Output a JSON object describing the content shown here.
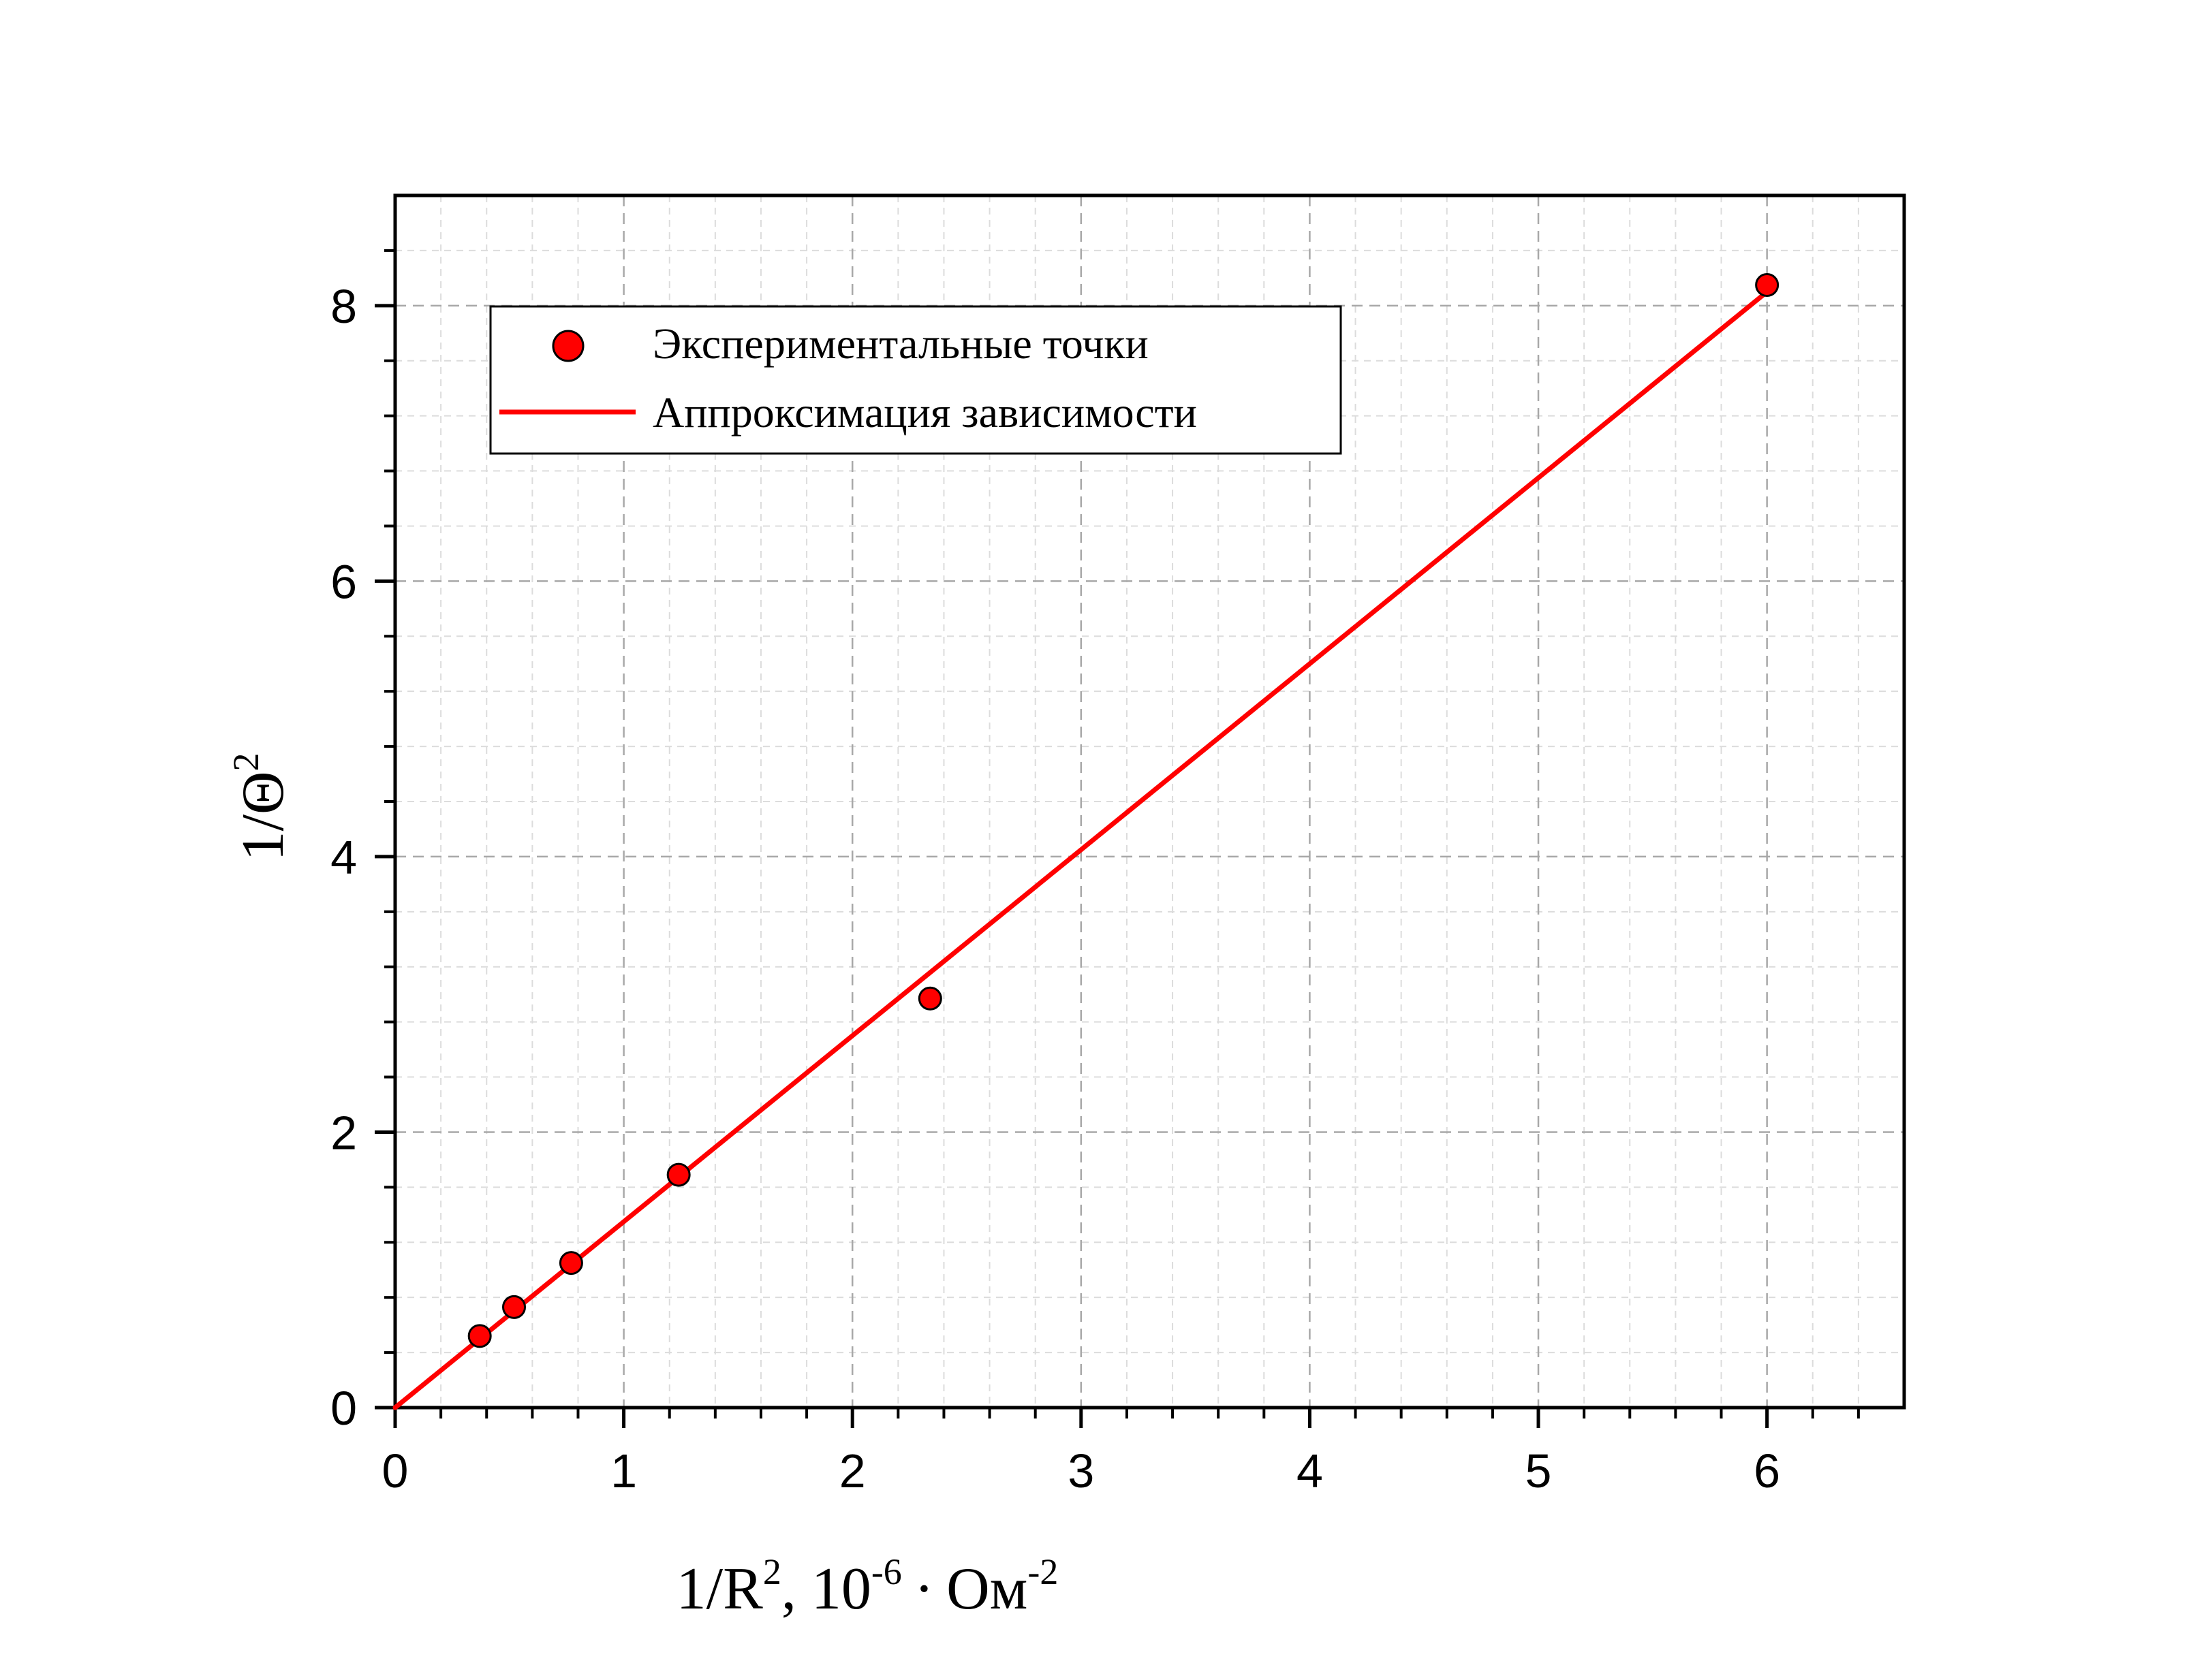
{
  "chart_data": {
    "type": "scatter",
    "xlim": [
      0,
      6.6
    ],
    "ylim": [
      0,
      8.8
    ],
    "x_ticks": [
      0,
      1,
      2,
      3,
      4,
      5,
      6
    ],
    "y_ticks": [
      0,
      2,
      4,
      6,
      8
    ],
    "x_tick_labels": [
      "0",
      "1",
      "2",
      "3",
      "4",
      "5",
      "6"
    ],
    "y_tick_labels": [
      "0",
      "2",
      "4",
      "6",
      "8"
    ],
    "grid": true,
    "legend_position": "top-left",
    "xlabel": {
      "main": "1/R",
      "sup1": "2",
      "mid": ", 10",
      "sup2": "-6",
      "dot": "·",
      "unit": "Ом",
      "sup3": "-2"
    },
    "ylabel": {
      "main": "1/Θ",
      "sup": "2"
    },
    "series": [
      {
        "name": "Экспериментальные точки",
        "type": "scatter",
        "color": "#ff0000",
        "x": [
          0.37,
          0.52,
          0.77,
          1.24,
          2.34,
          6.0
        ],
        "y": [
          0.52,
          0.73,
          1.05,
          1.69,
          2.97,
          8.15
        ]
      },
      {
        "name": "Аппроксимация зависимости",
        "type": "line",
        "color": "#ff0000",
        "x": [
          0,
          6.0
        ],
        "y": [
          0,
          8.1
        ]
      }
    ]
  }
}
